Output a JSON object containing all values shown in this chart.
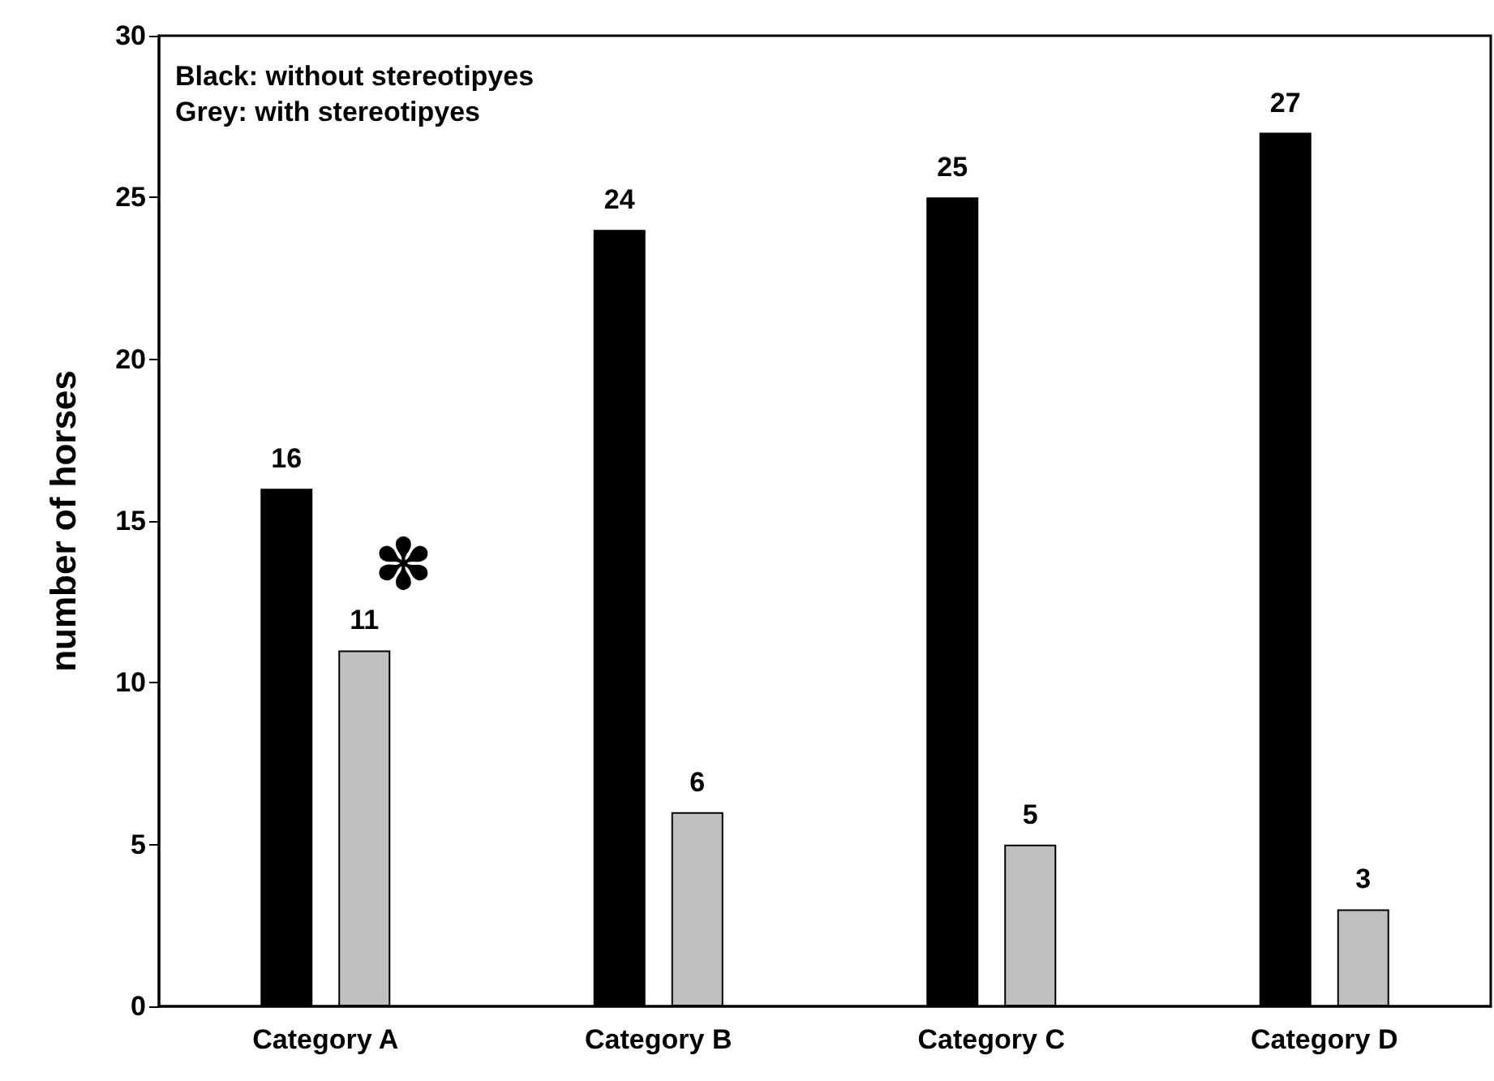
{
  "chart_data": {
    "type": "bar",
    "ylabel": "number of horses",
    "categories": [
      "Category A",
      "Category B",
      "Category C",
      "Category D"
    ],
    "series": [
      {
        "color": "#000000",
        "values": [
          16,
          24,
          25,
          27
        ]
      },
      {
        "color": "#c0c0c0",
        "values": [
          11,
          6,
          5,
          3
        ]
      }
    ],
    "ylim": [
      0,
      30
    ],
    "yticks": [
      0,
      5,
      10,
      15,
      20,
      25,
      30
    ],
    "data_labels": true,
    "grid": false,
    "annotations": [
      "Black: without stereotipyes",
      "Grey: with stereotipyes",
      "✽"
    ]
  }
}
